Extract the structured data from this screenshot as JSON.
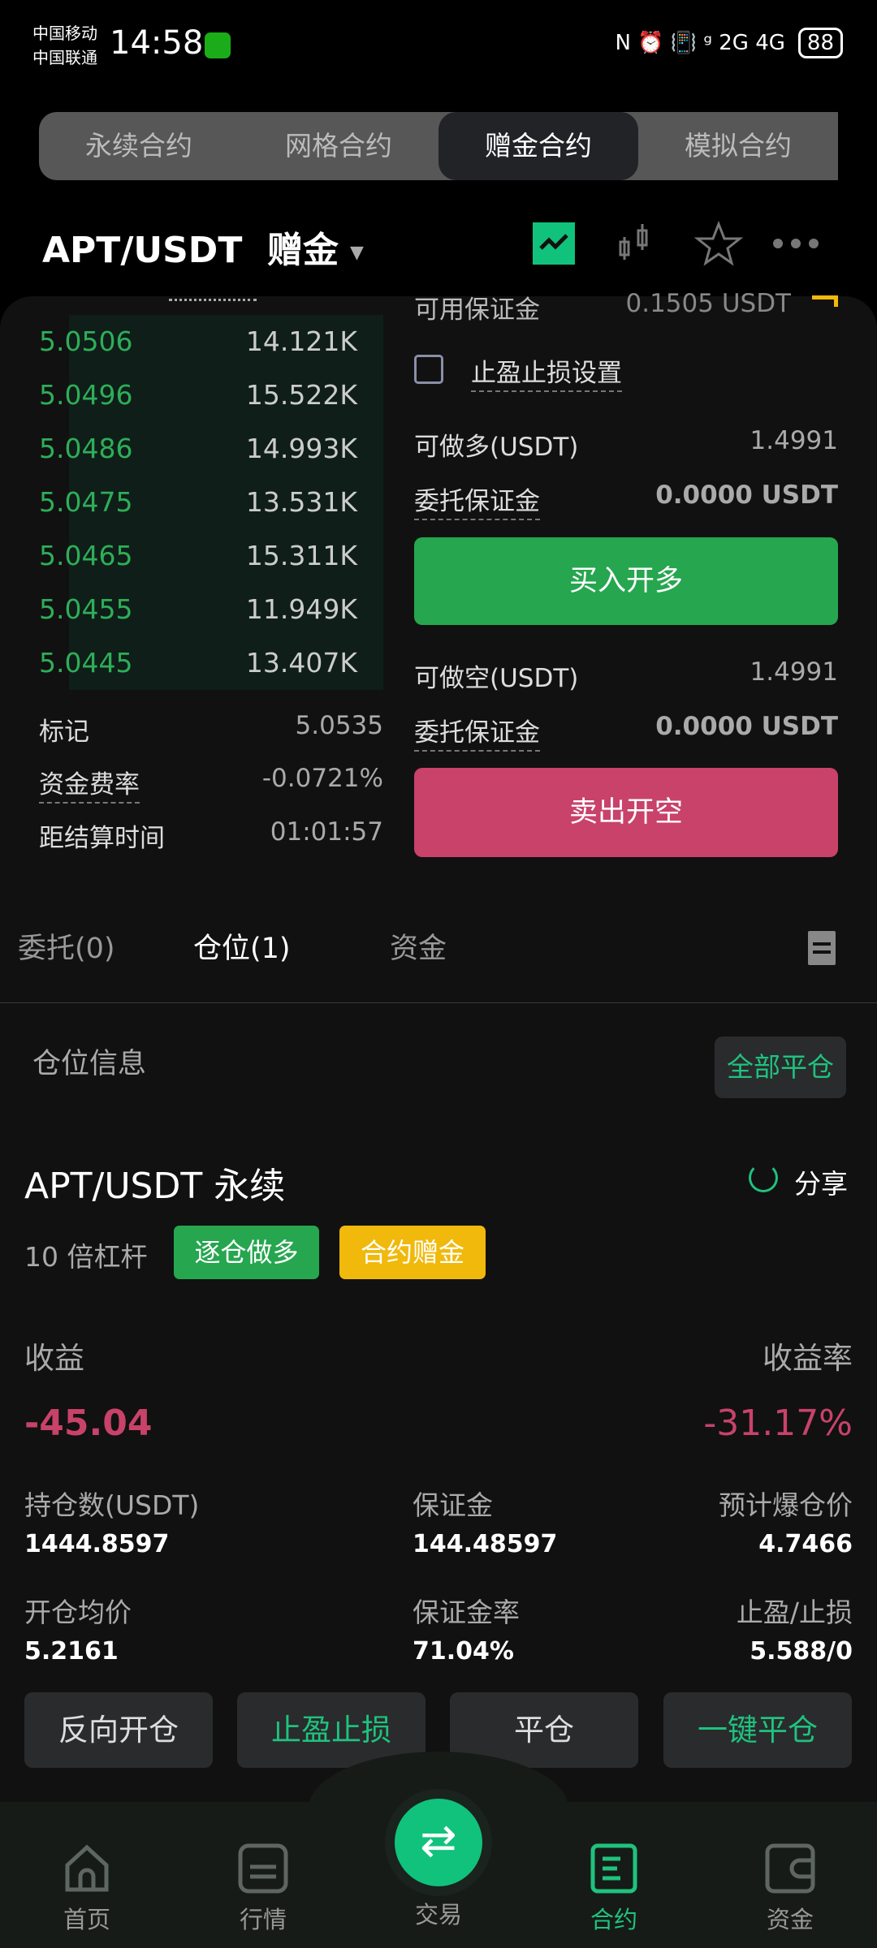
{
  "status_bar": {
    "carrier1": "中国移动",
    "carrier2": "中国联通",
    "time": "14:58",
    "indicators": "N ⏰ 📳 ᵍ 2G 4G",
    "battery": "88"
  },
  "segments": [
    {
      "label": "永续合约"
    },
    {
      "label": "网格合约"
    },
    {
      "label": "赠金合约",
      "active": true
    },
    {
      "label": "模拟合约"
    }
  ],
  "header": {
    "pair": "APT/USDT",
    "mode": "赠金",
    "icons": [
      "line-chart-icon",
      "candlestick-icon",
      "star-icon",
      "more-icon"
    ]
  },
  "orderbook": [
    {
      "price": "5.0506",
      "qty": "14.121K"
    },
    {
      "price": "5.0496",
      "qty": "15.522K"
    },
    {
      "price": "5.0486",
      "qty": "14.993K"
    },
    {
      "price": "5.0475",
      "qty": "13.531K"
    },
    {
      "price": "5.0465",
      "qty": "15.311K"
    },
    {
      "price": "5.0455",
      "qty": "11.949K"
    },
    {
      "price": "5.0445",
      "qty": "13.407K"
    }
  ],
  "market": {
    "mark_label": "标记",
    "mark": "5.0535",
    "funding_label": "资金费率",
    "funding": "-0.0721%",
    "settle_label": "距结算时间",
    "settle": "01:01:57"
  },
  "order": {
    "avail_label": "可用保证金",
    "avail": "0.1505 USDT",
    "tpsl_label": "止盈止损设置",
    "long_label": "可做多(USDT)",
    "long_val": "1.4991",
    "margin_label": "委托保证金",
    "margin_val": "0.0000 USDT",
    "buy": "买入开多",
    "short_label": "可做空(USDT)",
    "short_val": "1.4991",
    "margin_label2": "委托保证金",
    "margin_val2": "0.0000 USDT",
    "sell": "卖出开空"
  },
  "tabs": [
    {
      "label": "委托(0)"
    },
    {
      "label": "仓位(1)",
      "active": true
    },
    {
      "label": "资金"
    }
  ],
  "position": {
    "section": "仓位信息",
    "close_all": "全部平仓",
    "name": "APT/USDT 永续",
    "share": "分享",
    "leverage": "10 倍杠杆",
    "tag1": "逐仓做多",
    "tag2": "合约赠金",
    "pnl_label": "收益",
    "pnl": "-45.04",
    "roe_label": "收益率",
    "roe": "-31.17%",
    "fields": [
      {
        "label": "持仓数(USDT)",
        "value": "1444.8597"
      },
      {
        "label": "保证金",
        "value": "144.48597"
      },
      {
        "label": "预计爆仓价",
        "value": "4.7466"
      },
      {
        "label": "开仓均价",
        "value": "5.2161"
      },
      {
        "label": "保证金率",
        "value": "71.04%"
      },
      {
        "label": "止盈/止损",
        "value": "5.588/0"
      }
    ],
    "actions": [
      "反向开仓",
      "止盈止损",
      "平仓",
      "一键平仓"
    ]
  },
  "nav": [
    {
      "label": "首页"
    },
    {
      "label": "行情"
    },
    {
      "label": "交易"
    },
    {
      "label": "合约",
      "active": true
    },
    {
      "label": "资金"
    }
  ],
  "colors": {
    "green": "#2eae58",
    "accent": "#1fc27e",
    "red": "#c8426a",
    "yellow": "#f0b90b"
  }
}
